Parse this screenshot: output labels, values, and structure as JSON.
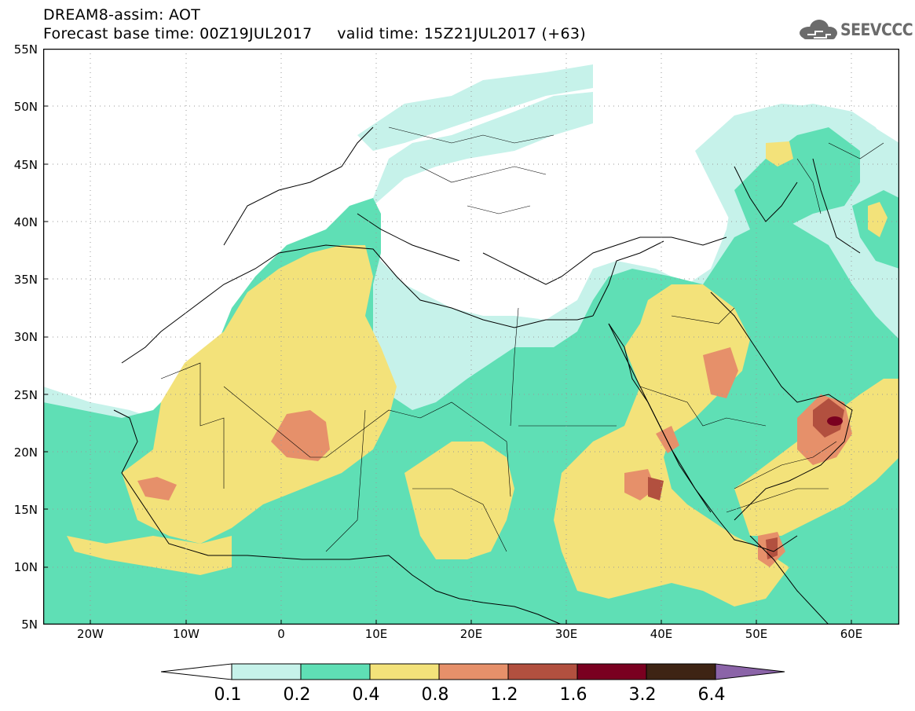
{
  "header": {
    "line1": "DREAM8-assim: AOT",
    "line2": "Forecast base time: 00Z19JUL2017     valid time: 15Z21JUL2017 (+63)"
  },
  "logo": {
    "text": "SEEVCCC",
    "icon": "cloud-icon",
    "color": "#6b6b6b"
  },
  "map": {
    "variable": "AOT",
    "lat_range": [
      5,
      55
    ],
    "lon_range": [
      -25,
      65
    ],
    "lat_ticks": [
      "55N",
      "50N",
      "45N",
      "40N",
      "35N",
      "30N",
      "25N",
      "20N",
      "15N",
      "10N",
      "5N"
    ],
    "lon_ticks": [
      "20W",
      "10W",
      "0",
      "10E",
      "20E",
      "30E",
      "40E",
      "50E",
      "60E"
    ],
    "grid": true
  },
  "colorbar": {
    "levels": [
      "0.1",
      "0.2",
      "0.4",
      "0.8",
      "1.2",
      "1.6",
      "3.2",
      "6.4"
    ],
    "colors": [
      "#c6f2ea",
      "#5fdfb5",
      "#f3e27a",
      "#e6906a",
      "#b2503f",
      "#7a0020",
      "#3e2414"
    ],
    "extend_low_color": "#ffffff",
    "extend_high_color": "#8b64a8"
  }
}
